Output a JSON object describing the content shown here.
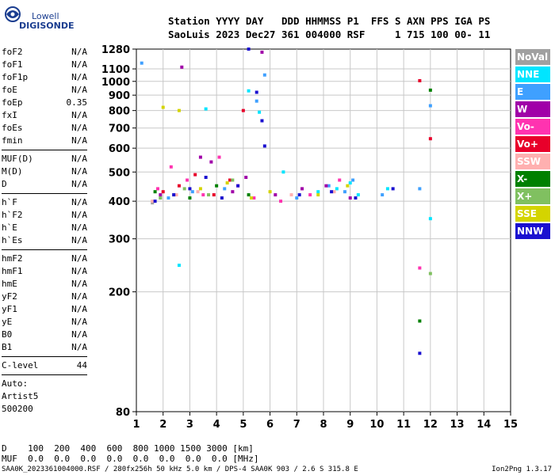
{
  "logo": {
    "line1": "Lowell",
    "line2": "DIGISONDE"
  },
  "header": {
    "labels": "Station YYYY DAY   DDD HHMMSS P1  FFS S AXN PPS IGA PS",
    "values": "SaoLuis 2023 Dec27 361 004000 RSF     1 715 100 00- 11"
  },
  "params": [
    [
      {
        "name": "foF2",
        "value": "N/A"
      },
      {
        "name": "foF1",
        "value": "N/A"
      },
      {
        "name": "foF1p",
        "value": "N/A"
      },
      {
        "name": "foE",
        "value": "N/A"
      },
      {
        "name": "foEp",
        "value": "0.35"
      },
      {
        "name": "fxI",
        "value": "N/A"
      },
      {
        "name": "foEs",
        "value": "N/A"
      },
      {
        "name": "fmin",
        "value": "N/A"
      }
    ],
    [
      {
        "name": "MUF(D)",
        "value": "N/A"
      },
      {
        "name": "M(D)",
        "value": "N/A"
      },
      {
        "name": "D",
        "value": "N/A"
      }
    ],
    [
      {
        "name": "h`F",
        "value": "N/A"
      },
      {
        "name": "h`F2",
        "value": "N/A"
      },
      {
        "name": "h`E",
        "value": "N/A"
      },
      {
        "name": "h`Es",
        "value": "N/A"
      }
    ],
    [
      {
        "name": "hmF2",
        "value": "N/A"
      },
      {
        "name": "hmF1",
        "value": "N/A"
      },
      {
        "name": "hmE",
        "value": "N/A"
      },
      {
        "name": "yF2",
        "value": "N/A"
      },
      {
        "name": "yF1",
        "value": "N/A"
      },
      {
        "name": "yE",
        "value": "N/A"
      },
      {
        "name": "B0",
        "value": "N/A"
      },
      {
        "name": "B1",
        "value": "N/A"
      }
    ],
    [
      {
        "name": "C-level",
        "value": "44"
      }
    ]
  ],
  "auto": {
    "line1": "Auto:",
    "line2": "Artist5",
    "line3": "500200"
  },
  "legend": [
    {
      "label": "NoVal",
      "color": "#a0a0a0"
    },
    {
      "label": "NNE",
      "color": "#00e5ff"
    },
    {
      "label": "E",
      "color": "#3fa0ff"
    },
    {
      "label": "W",
      "color": "#a000a8"
    },
    {
      "label": "Vo-",
      "color": "#ff33b0"
    },
    {
      "label": "Vo+",
      "color": "#e8002a"
    },
    {
      "label": "SSW",
      "color": "#ffb0b0"
    },
    {
      "label": "X-",
      "color": "#008000"
    },
    {
      "label": "X+",
      "color": "#80c060"
    },
    {
      "label": "SSE",
      "color": "#d4d400"
    },
    {
      "label": "NNW",
      "color": "#1a10d0"
    }
  ],
  "chart_data": {
    "type": "scatter",
    "title": "",
    "xlabel": "",
    "ylabel": "",
    "xlim": [
      1,
      15
    ],
    "ylim": [
      80,
      1280
    ],
    "y_scale": "log",
    "x_ticks": [
      1,
      2,
      3,
      4,
      5,
      6,
      7,
      8,
      9,
      10,
      11,
      12,
      13,
      14,
      15
    ],
    "y_ticks": [
      80,
      200,
      300,
      400,
      500,
      600,
      700,
      800,
      900,
      1000,
      1100,
      1280
    ],
    "grid": true,
    "legend_position": "right",
    "series": [
      {
        "name": "NoVal",
        "x": [
          1.6,
          1.9,
          2.4
        ],
        "y": [
          395,
          410,
          420
        ]
      },
      {
        "name": "NNE",
        "x": [
          2.6,
          3.6,
          5.2,
          5.6,
          6.5,
          7.8,
          8.5,
          9.0,
          9.3,
          10.4,
          12.0
        ],
        "y": [
          245,
          810,
          930,
          790,
          500,
          430,
          440,
          460,
          420,
          440,
          350
        ]
      },
      {
        "name": "E",
        "x": [
          1.2,
          2.2,
          3.1,
          4.3,
          5.5,
          5.8,
          7.0,
          8.2,
          8.8,
          9.1,
          10.2,
          11.6,
          12.0
        ],
        "y": [
          1150,
          410,
          430,
          440,
          860,
          1050,
          410,
          450,
          430,
          470,
          420,
          440,
          830
        ]
      },
      {
        "name": "W",
        "x": [
          1.9,
          2.7,
          3.4,
          3.8,
          4.6,
          5.1,
          5.7,
          6.2,
          7.2,
          8.1,
          9.0
        ],
        "y": [
          420,
          1115,
          560,
          540,
          430,
          480,
          1250,
          420,
          440,
          450,
          410
        ]
      },
      {
        "name": "Vo-",
        "x": [
          1.8,
          2.3,
          2.9,
          3.5,
          4.1,
          4.8,
          5.4,
          6.4,
          7.5,
          8.6,
          11.6
        ],
        "y": [
          440,
          520,
          470,
          420,
          560,
          450,
          410,
          400,
          420,
          470,
          240
        ]
      },
      {
        "name": "Vo+",
        "x": [
          2.0,
          2.6,
          3.2,
          3.9,
          4.5,
          5.0,
          11.6,
          12.0
        ],
        "y": [
          430,
          450,
          490,
          420,
          470,
          800,
          1005,
          645
        ]
      },
      {
        "name": "SSW",
        "x": [
          1.6,
          2.5,
          3.3,
          4.2,
          6.8,
          8.4
        ],
        "y": [
          400,
          420,
          430,
          410,
          420,
          430
        ]
      },
      {
        "name": "X-",
        "x": [
          1.7,
          3.0,
          4.0,
          5.2,
          11.6,
          12.0
        ],
        "y": [
          430,
          410,
          450,
          420,
          160,
          935
        ]
      },
      {
        "name": "X+",
        "x": [
          1.9,
          2.8,
          3.7,
          4.6,
          12.0
        ],
        "y": [
          410,
          440,
          420,
          470,
          230
        ]
      },
      {
        "name": "SSE",
        "x": [
          2.0,
          2.6,
          3.4,
          4.4,
          5.3,
          6.0,
          7.8,
          8.9
        ],
        "y": [
          820,
          800,
          440,
          460,
          410,
          430,
          420,
          450
        ]
      },
      {
        "name": "NNW",
        "x": [
          1.7,
          2.4,
          3.0,
          3.6,
          4.2,
          4.8,
          5.2,
          5.5,
          5.7,
          5.8,
          7.1,
          8.3,
          9.2,
          10.6,
          11.6
        ],
        "y": [
          400,
          420,
          440,
          480,
          410,
          450,
          1280,
          920,
          740,
          610,
          420,
          430,
          410,
          440,
          125
        ]
      }
    ]
  },
  "bottom": {
    "line1": "D    100  200  400  600  800 1000 1500 3000 [km]",
    "line2": "MUF  0.0  0.0  0.0  0.0  0.0  0.0  0.0  0.0 [MHz]"
  },
  "footer": "SAA0K_2023361004000.RSF / 280fx256h 50 kHz 5.0 km / DPS-4 SAA0K 903 / 2.6 S 315.8 E",
  "version": "Ion2Png 1.3.17"
}
